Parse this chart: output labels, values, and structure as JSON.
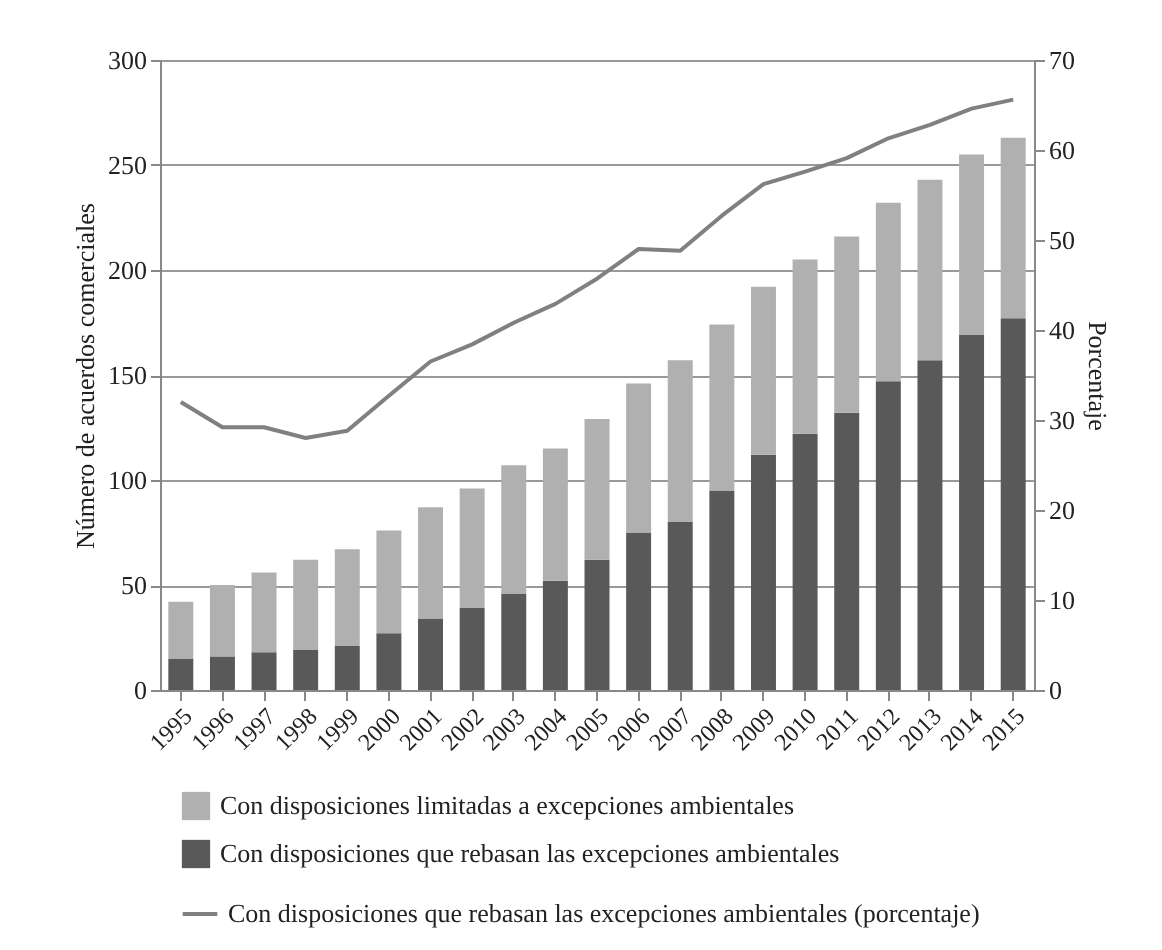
{
  "chart_data": {
    "type": "bar",
    "stacked": true,
    "categories": [
      "1995",
      "1996",
      "1997",
      "1998",
      "1999",
      "2000",
      "2001",
      "2002",
      "2003",
      "2004",
      "2005",
      "2006",
      "2007",
      "2008",
      "2009",
      "2010",
      "2011",
      "2012",
      "2013",
      "2014",
      "2015"
    ],
    "series": [
      {
        "name": "Con disposiciones que rebasan las excepciones ambientales",
        "color": "#595959",
        "values": [
          15,
          16,
          18,
          19,
          21,
          27,
          34,
          39,
          46,
          52,
          62,
          75,
          80,
          95,
          112,
          122,
          132,
          147,
          157,
          169,
          177
        ]
      },
      {
        "name": "Con disposiciones limitadas a excepciones ambientales",
        "color": "#b0b0b0",
        "values": [
          27,
          34,
          38,
          43,
          46,
          49,
          53,
          57,
          61,
          63,
          67,
          71,
          77,
          79,
          80,
          83,
          84,
          85,
          86,
          86,
          86
        ]
      },
      {
        "name": "Con disposiciones que rebasan las excepciones ambientales (porcentaje)",
        "color": "#808080",
        "type": "line",
        "axis": "y2",
        "values": [
          32,
          29.2,
          29.2,
          28,
          28.8,
          32.7,
          36.5,
          38.4,
          40.8,
          42.9,
          45.7,
          49,
          48.8,
          52.7,
          56.2,
          57.6,
          59.1,
          61.3,
          62.8,
          64.6,
          65.6
        ]
      }
    ],
    "ylabel": "Número de acuerdos comerciales",
    "y2label": "Porcentaje",
    "ylim": [
      0,
      300
    ],
    "yticks": [
      0,
      50,
      100,
      150,
      200,
      250,
      300
    ],
    "y2lim": [
      0,
      70
    ],
    "y2ticks": [
      0,
      10,
      20,
      30,
      40,
      50,
      60,
      70
    ],
    "grid": "y",
    "legend": "bottom"
  }
}
